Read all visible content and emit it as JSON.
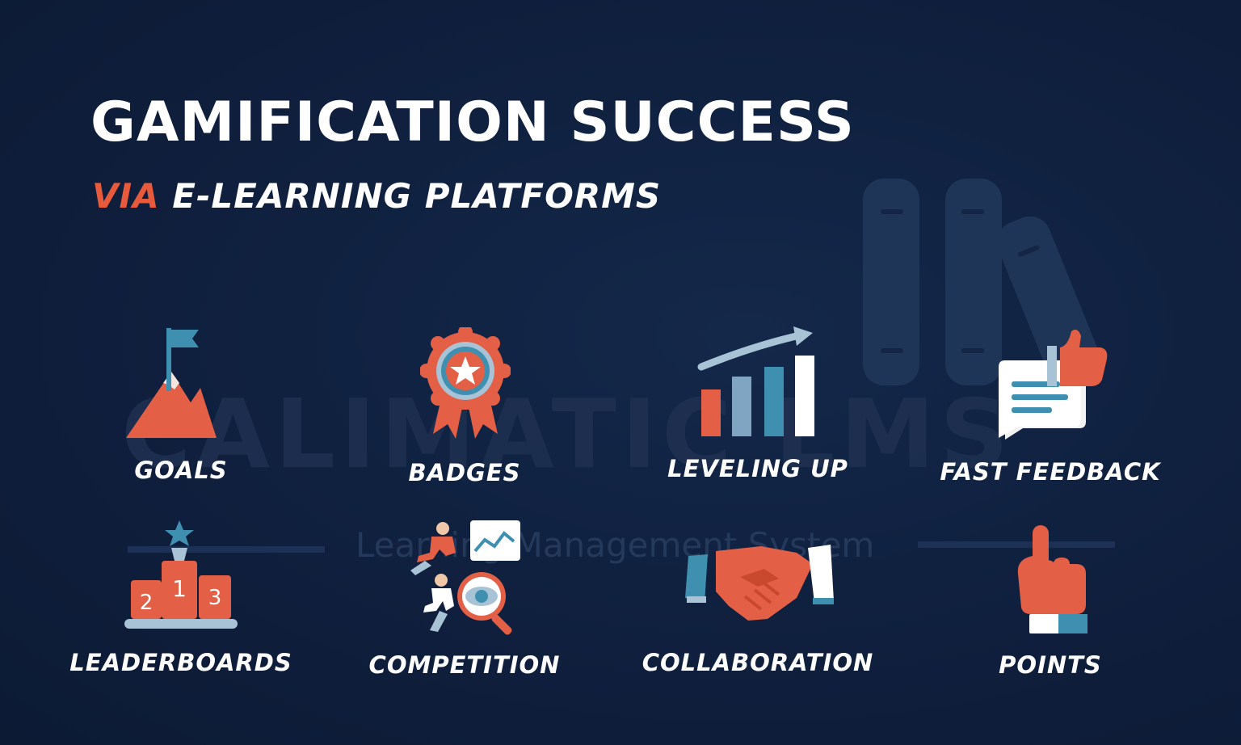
{
  "header": {
    "title": "GAMIFICATION SUCCESS",
    "subtitle_accent": "VIA",
    "subtitle_rest": "E-LEARNING PLATFORMS"
  },
  "watermark": {
    "brand": "CALIMATIC LMS",
    "tagline": "Learning Management System"
  },
  "features": [
    {
      "label": "GOALS",
      "icon": "mountain-flag-icon"
    },
    {
      "label": "BADGES",
      "icon": "award-badge-icon"
    },
    {
      "label": "LEVELING UP",
      "icon": "growth-chart-icon"
    },
    {
      "label": "FAST FEEDBACK",
      "icon": "feedback-thumbs-up-icon"
    },
    {
      "label": "LEADERBOARDS",
      "icon": "podium-icon"
    },
    {
      "label": "COMPETITION",
      "icon": "runners-magnifier-icon"
    },
    {
      "label": "COLLABORATION",
      "icon": "handshake-icon"
    },
    {
      "label": "POINTS",
      "icon": "pointing-hand-icon"
    }
  ],
  "colors": {
    "background": "#0f1f3d",
    "accent": "#e85a3c",
    "blue": "#3f8fb0",
    "light_blue": "#a9c3d6",
    "text": "#ffffff"
  }
}
